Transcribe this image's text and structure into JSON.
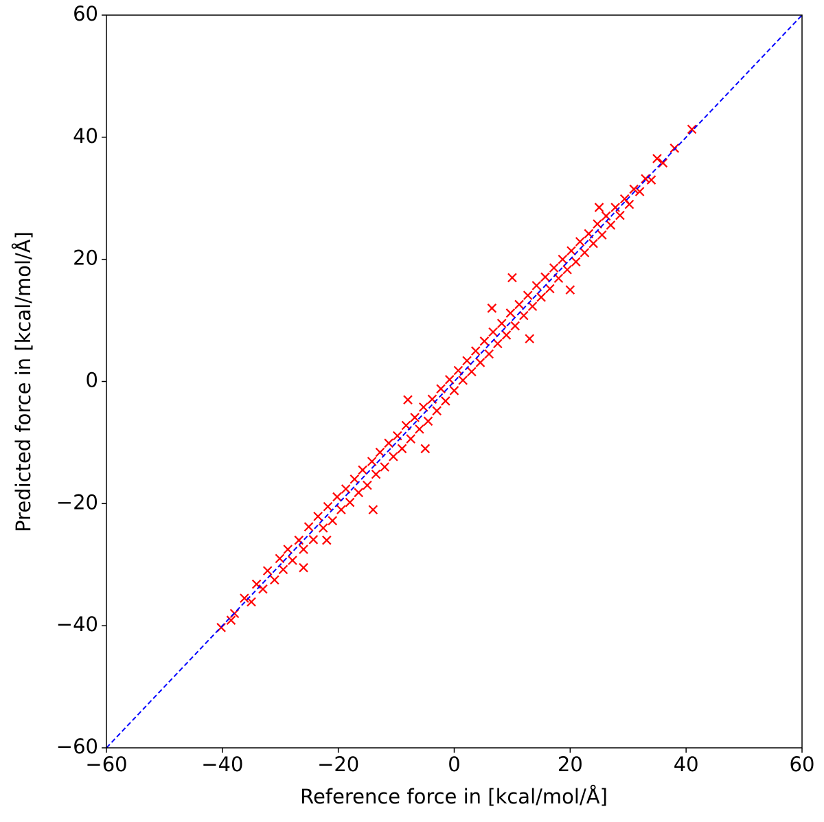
{
  "chart_data": {
    "type": "scatter",
    "xlabel": "Reference force in [kcal/mol/Å]",
    "ylabel": "Predicted force in [kcal/mol/Å]",
    "color": "#ff0000",
    "marker": "x",
    "xlim": [
      -60,
      60
    ],
    "ylim": [
      -60,
      60
    ],
    "xticks": [
      {
        "value": -60,
        "label": "−60"
      },
      {
        "value": -40,
        "label": "−40"
      },
      {
        "value": -20,
        "label": "−20"
      },
      0,
      20,
      40,
      60
    ],
    "yticks": [
      {
        "value": -60,
        "label": "−60"
      },
      {
        "value": -40,
        "label": "−40"
      },
      {
        "value": -20,
        "label": "−20"
      },
      0,
      20,
      40,
      60
    ],
    "reference_line": {
      "x": [
        -60,
        60
      ],
      "y": [
        -60,
        60
      ],
      "color": "#0000ff",
      "style": "dashed"
    },
    "x": [
      -40.2,
      -38.5,
      -37.9,
      -36.2,
      -35.0,
      -34.1,
      -33.0,
      -32.2,
      -31.0,
      -30.1,
      -29.5,
      -28.7,
      -27.9,
      -26.8,
      -26.0,
      -25.1,
      -24.3,
      -23.5,
      -22.6,
      -21.8,
      -21.0,
      -20.2,
      -19.5,
      -18.7,
      -18.0,
      -17.2,
      -16.5,
      -15.8,
      -15.0,
      -14.2,
      -13.5,
      -12.8,
      -12.0,
      -11.3,
      -10.5,
      -9.8,
      -9.0,
      -8.3,
      -7.5,
      -6.8,
      -6.0,
      -5.3,
      -4.5,
      -3.8,
      -3.0,
      -2.3,
      -1.5,
      -0.8,
      0.0,
      0.7,
      1.5,
      2.2,
      3.0,
      3.7,
      4.5,
      5.2,
      6.0,
      6.7,
      7.5,
      8.2,
      9.0,
      9.7,
      10.5,
      11.2,
      12.0,
      12.7,
      13.5,
      14.2,
      15.0,
      15.7,
      16.5,
      17.2,
      18.0,
      18.7,
      19.5,
      20.2,
      21.0,
      21.7,
      22.5,
      23.2,
      24.0,
      24.7,
      25.5,
      26.2,
      27.0,
      27.8,
      28.6,
      29.4,
      30.2,
      31.0,
      32.0,
      33.0,
      34.0,
      35.0,
      36.0,
      38.0,
      41.0,
      6.5,
      -22.0,
      -26.0,
      13.0,
      -8.0,
      25.0,
      -14.0,
      10.0,
      20.0,
      -5.0
    ],
    "y": [
      -40.3,
      -39.1,
      -38.0,
      -35.5,
      -36.1,
      -33.2,
      -34.0,
      -31.0,
      -32.5,
      -29.0,
      -30.8,
      -27.5,
      -29.3,
      -26.0,
      -27.5,
      -23.8,
      -25.9,
      -22.1,
      -24.0,
      -20.5,
      -22.8,
      -18.9,
      -21.0,
      -17.6,
      -19.8,
      -16.0,
      -18.2,
      -14.5,
      -17.0,
      -13.1,
      -15.2,
      -11.6,
      -14.0,
      -10.1,
      -12.3,
      -8.9,
      -11.0,
      -7.2,
      -9.4,
      -5.9,
      -7.8,
      -4.2,
      -6.5,
      -2.9,
      -4.8,
      -1.2,
      -3.2,
      0.3,
      -1.5,
      1.8,
      0.2,
      3.4,
      1.6,
      5.0,
      3.1,
      6.6,
      4.5,
      8.1,
      6.2,
      9.5,
      7.6,
      11.2,
      9.1,
      12.6,
      10.8,
      14.1,
      12.3,
      15.7,
      13.8,
      17.1,
      15.2,
      18.6,
      16.9,
      20.0,
      18.3,
      21.4,
      19.6,
      22.9,
      21.1,
      24.2,
      22.6,
      25.8,
      24.0,
      27.1,
      25.6,
      28.5,
      27.2,
      29.9,
      29.0,
      31.5,
      31.1,
      33.2,
      33.0,
      36.5,
      35.8,
      38.2,
      41.3,
      12.0,
      -26.0,
      -30.5,
      7.0,
      -3.0,
      28.5,
      -21.0,
      17.0,
      15.0,
      -11.0
    ]
  }
}
